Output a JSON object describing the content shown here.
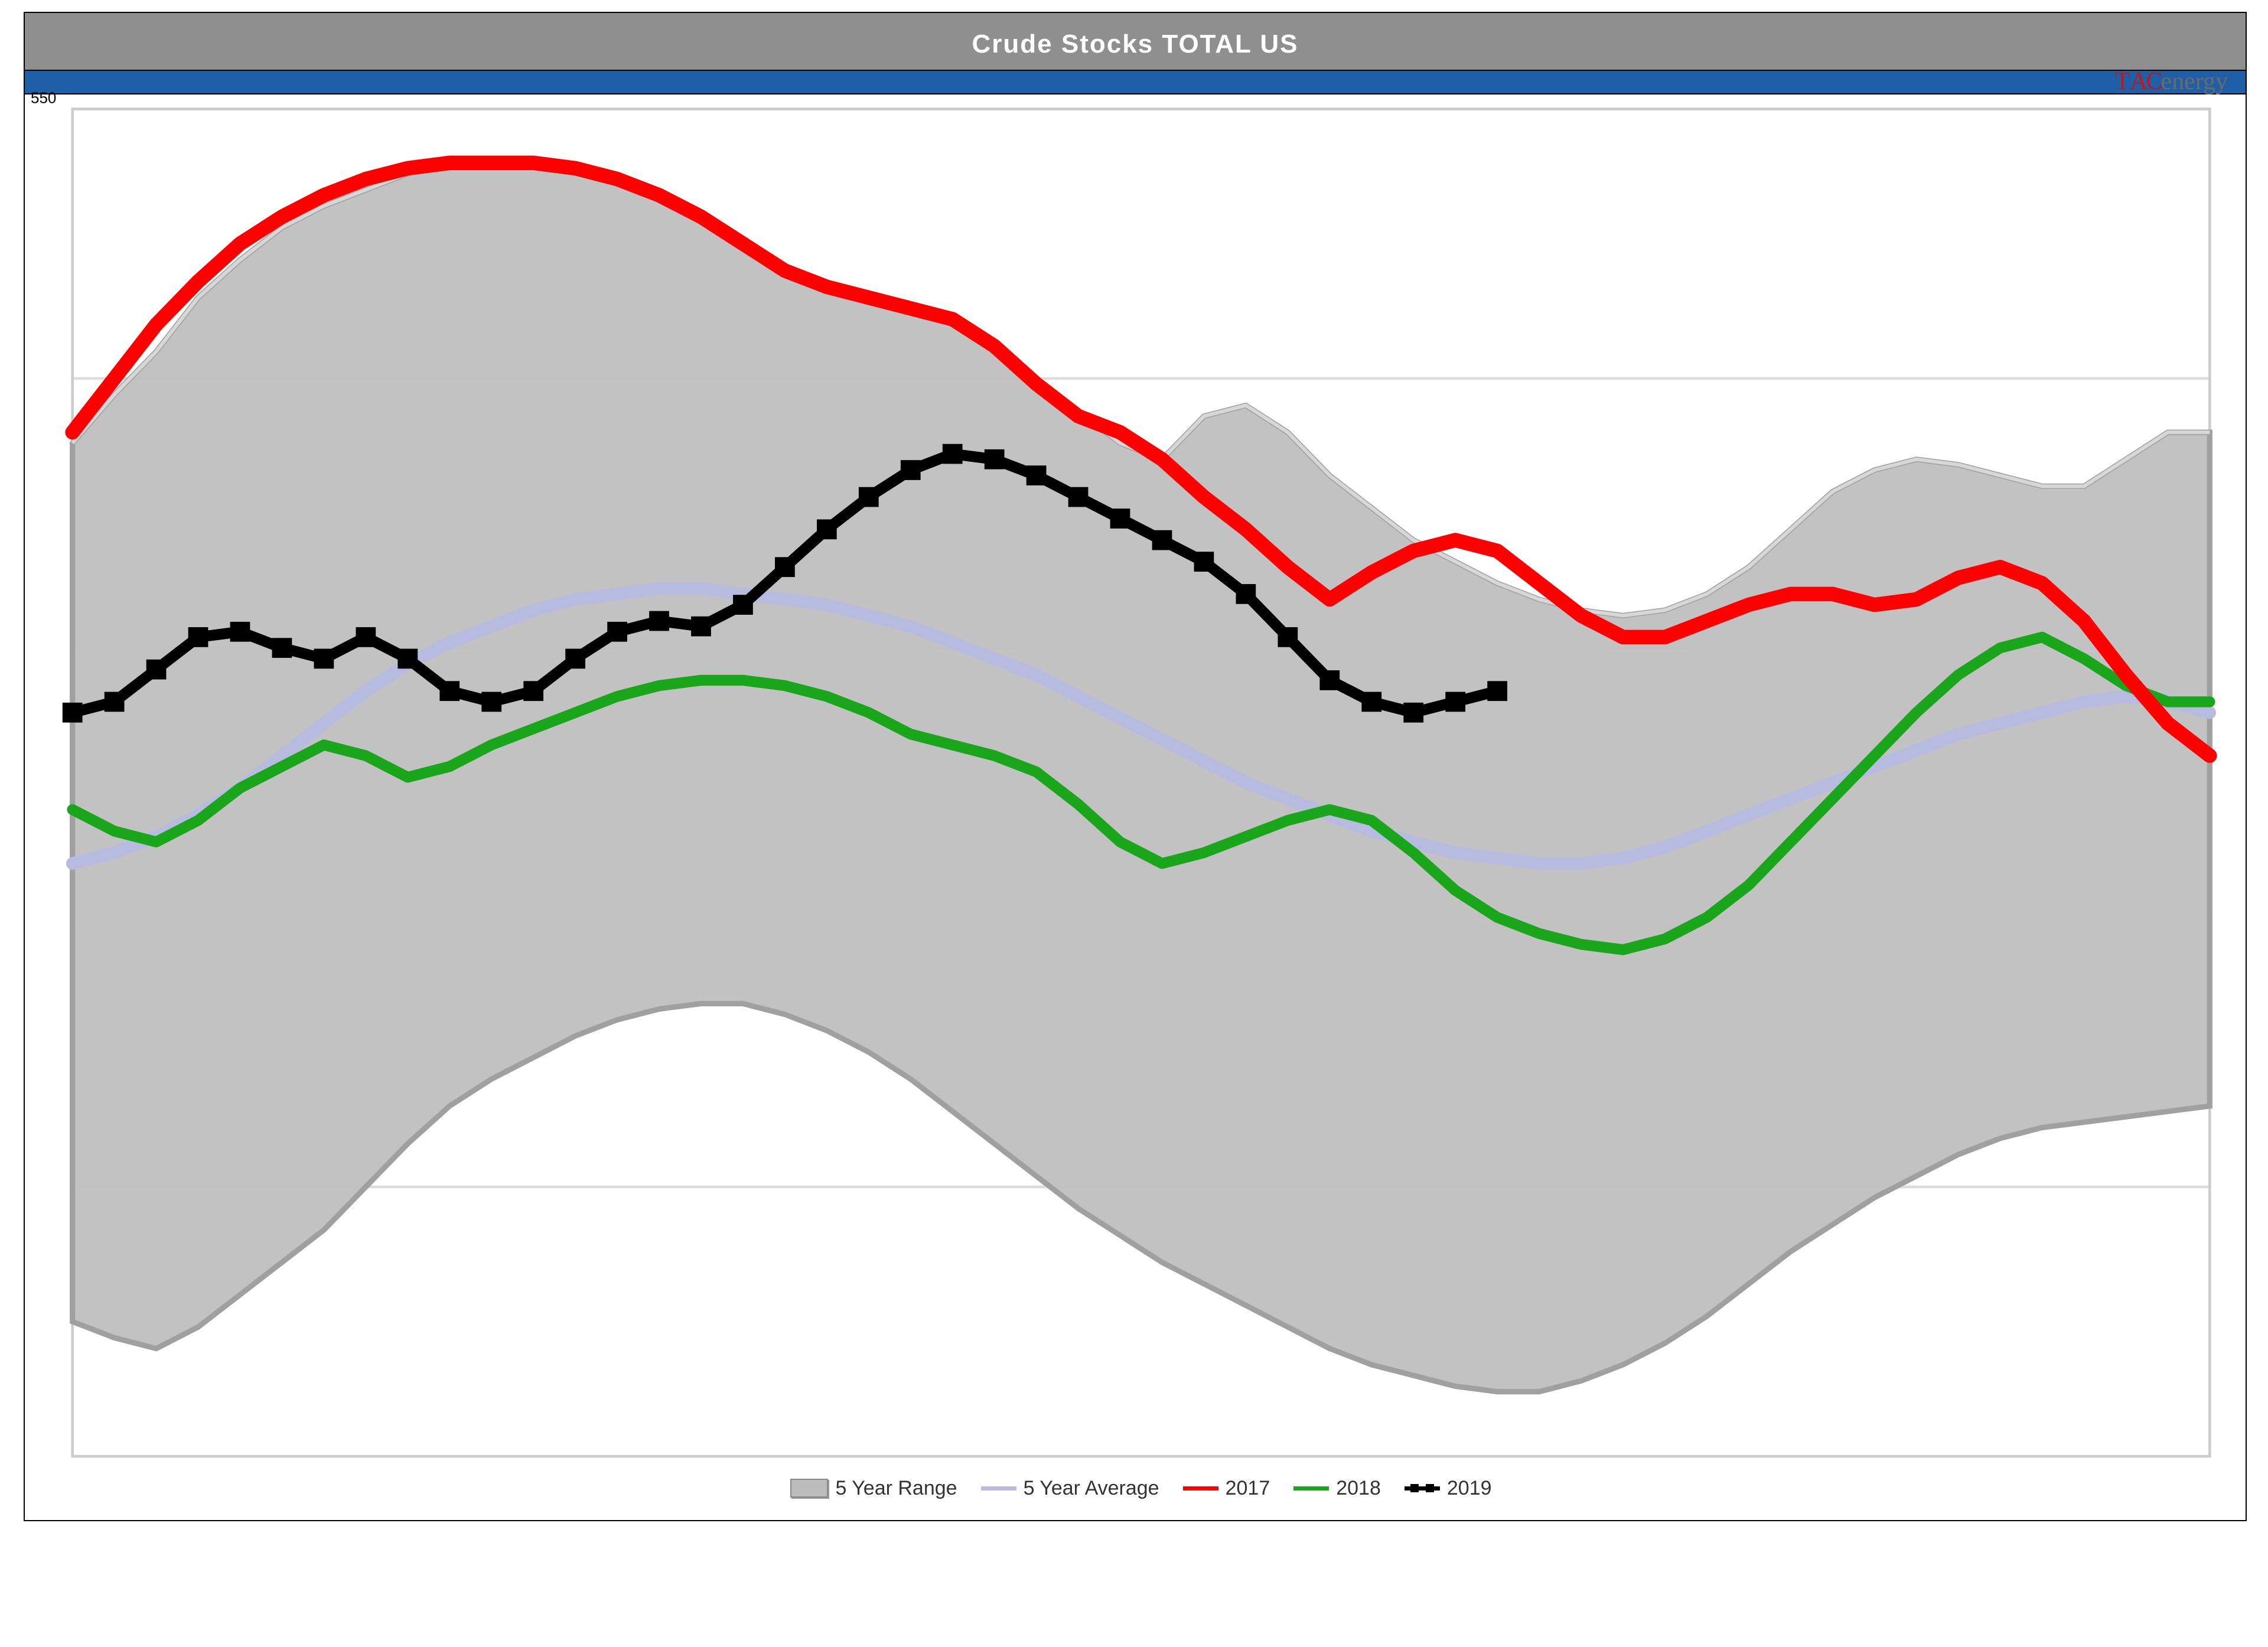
{
  "chart": {
    "type": "line-area",
    "title": "Crude Stocks TOTAL US",
    "title_fontsize": 44,
    "title_color": "#ffffff",
    "title_bg": "#8f8f8f",
    "accent_band_color": "#1f5fa8",
    "background_color": "#ffffff",
    "border_color": "#000000",
    "logo": {
      "prefix": "TAC",
      "suffix": "energy",
      "prefix_color": "#c01818",
      "suffix_color": "#6a6a6a"
    },
    "x": {
      "weeks": 52,
      "min": 1,
      "max": 52
    },
    "y": {
      "min": 300,
      "max": 550,
      "ticks": [
        300,
        350,
        400,
        450,
        500,
        550
      ],
      "label_visible_tick": 550,
      "label_text": "550"
    },
    "gridline_color": "#dddddd",
    "gridline_width": 1.5,
    "series": {
      "range_upper": {
        "label": "5 Year Range",
        "color_fill": "#bfbfbf",
        "color_stroke": "#a0a0a0",
        "stroke_width": 3,
        "values": [
          488,
          497,
          505,
          515,
          522,
          528,
          532,
          535,
          538,
          540,
          540,
          540,
          539,
          537,
          534,
          530,
          525,
          520,
          517,
          515,
          513,
          511,
          506,
          500,
          494,
          488,
          485,
          493,
          495,
          490,
          482,
          476,
          470,
          466,
          462,
          459,
          457,
          456,
          457,
          460,
          465,
          472,
          479,
          483,
          485,
          484,
          482,
          480,
          480,
          485,
          490,
          490
        ]
      },
      "range_lower": {
        "color_fill": "#bfbfbf",
        "values": [
          325,
          322,
          320,
          324,
          330,
          336,
          342,
          350,
          358,
          365,
          370,
          374,
          378,
          381,
          383,
          384,
          384,
          382,
          379,
          375,
          370,
          364,
          358,
          352,
          346,
          341,
          336,
          332,
          328,
          324,
          320,
          317,
          315,
          313,
          312,
          312,
          314,
          317,
          321,
          326,
          332,
          338,
          343,
          348,
          352,
          356,
          359,
          361,
          362,
          363,
          364,
          365
        ]
      },
      "avg": {
        "label": "5 Year Average",
        "color": "#b8bbe0",
        "stroke_width": 7,
        "values": [
          410,
          412,
          415,
          419,
          424,
          430,
          436,
          442,
          447,
          451,
          454,
          457,
          459,
          460,
          461,
          461,
          460,
          459,
          458,
          456,
          454,
          451,
          448,
          445,
          441,
          437,
          433,
          429,
          425,
          422,
          419,
          416,
          414,
          412,
          411,
          410,
          410,
          411,
          413,
          416,
          419,
          422,
          425,
          428,
          431,
          434,
          436,
          438,
          440,
          441,
          440,
          438
        ]
      },
      "y2017": {
        "label": "2017",
        "color": "#ff0000",
        "stroke_width": 8,
        "values": [
          490,
          500,
          510,
          518,
          525,
          530,
          534,
          537,
          539,
          540,
          540,
          540,
          539,
          537,
          534,
          530,
          525,
          520,
          517,
          515,
          513,
          511,
          506,
          499,
          493,
          490,
          485,
          478,
          472,
          465,
          459,
          464,
          468,
          470,
          468,
          462,
          456,
          452,
          452,
          455,
          458,
          460,
          460,
          458,
          459,
          463,
          465,
          462,
          455,
          445,
          436,
          430
        ]
      },
      "y2018": {
        "label": "2018",
        "color": "#1aa61a",
        "stroke_width": 6,
        "values": [
          420,
          416,
          414,
          418,
          424,
          428,
          432,
          430,
          426,
          428,
          432,
          435,
          438,
          441,
          443,
          444,
          444,
          443,
          441,
          438,
          434,
          432,
          430,
          427,
          421,
          414,
          410,
          412,
          415,
          418,
          420,
          418,
          412,
          405,
          400,
          397,
          395,
          394,
          396,
          400,
          406,
          414,
          422,
          430,
          438,
          445,
          450,
          452,
          448,
          443,
          440,
          440
        ]
      },
      "y2019": {
        "label": "2019",
        "color": "#000000",
        "stroke_width": 6,
        "marker": "square",
        "marker_size": 10,
        "values": [
          438,
          440,
          446,
          452,
          453,
          450,
          448,
          452,
          448,
          442,
          440,
          442,
          448,
          453,
          455,
          454,
          458,
          465,
          472,
          478,
          483,
          486,
          485,
          482,
          478,
          474,
          470,
          466,
          460,
          452,
          444,
          440,
          438,
          440,
          442
        ]
      }
    },
    "legend": {
      "position": "bottom-center",
      "fontsize": 34,
      "items": [
        {
          "key": "range",
          "label": "5 Year Range"
        },
        {
          "key": "avg",
          "label": "5 Year Average"
        },
        {
          "key": "y2017",
          "label": "2017"
        },
        {
          "key": "y2018",
          "label": "2018"
        },
        {
          "key": "y2019",
          "label": "2019"
        }
      ]
    }
  }
}
